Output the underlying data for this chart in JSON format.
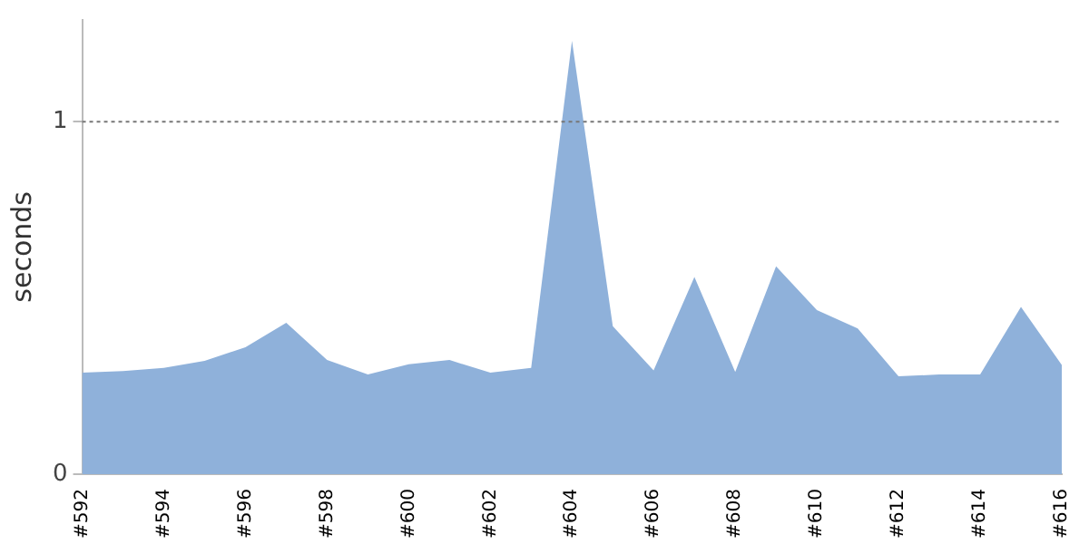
{
  "chart_data": {
    "type": "area",
    "ylabel": "seconds",
    "categories": [
      "#592",
      null,
      "#594",
      null,
      "#596",
      null,
      "#598",
      null,
      "#600",
      null,
      "#602",
      null,
      "#604",
      null,
      "#606",
      null,
      "#608",
      null,
      "#610",
      null,
      "#612",
      null,
      "#614",
      null,
      "#616"
    ],
    "series": [
      {
        "color": "#8fb1da",
        "values": [
          0.288,
          0.293,
          0.302,
          0.322,
          0.36,
          0.43,
          0.324,
          0.283,
          0.312,
          0.324,
          0.288,
          0.302,
          1.23,
          0.42,
          0.295,
          0.56,
          0.29,
          0.59,
          0.466,
          0.414,
          0.278,
          0.283,
          0.283,
          0.475,
          0.31
        ]
      }
    ],
    "ylim": [
      0,
      1.29
    ],
    "yticks": [
      0,
      1
    ],
    "grid": false,
    "legend": false,
    "ref_lines": [
      {
        "axis": "y",
        "value": 1,
        "color": "#777777",
        "line_style": "dotted"
      }
    ]
  }
}
